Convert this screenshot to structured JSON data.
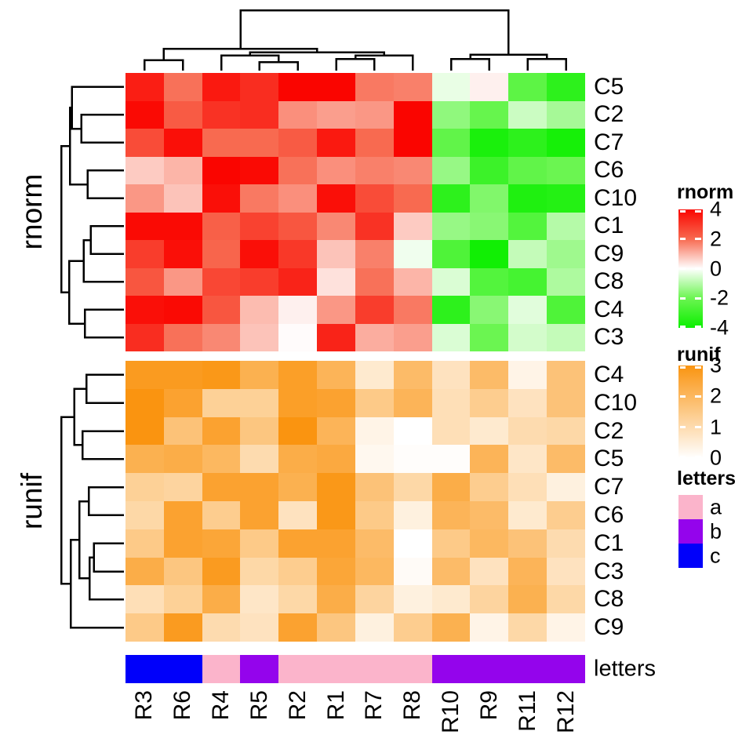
{
  "chart_data": {
    "type": "heatmap",
    "columns": [
      "R3",
      "R6",
      "R4",
      "R5",
      "R2",
      "R1",
      "R7",
      "R8",
      "R10",
      "R9",
      "R11",
      "R12"
    ],
    "column_dendrogram": {
      "h": 1.0,
      "c": [
        {
          "h": 0.36,
          "c": [
            {
              "h": 0.17,
              "c": [
                "R3",
                "R6"
              ]
            },
            {
              "h": 0.3,
              "c": [
                {
                  "h": 0.25,
                  "c": [
                    "R4",
                    {
                      "h": 0.14,
                      "c": [
                        "R5",
                        "R2"
                      ]
                    }
                  ]
                },
                {
                  "h": 0.25,
                  "c": [
                    {
                      "h": 0.19,
                      "c": [
                        "R1",
                        "R7"
                      ]
                    },
                    "R8"
                  ]
                }
              ]
            }
          ]
        },
        {
          "h": 0.26,
          "c": [
            {
              "h": 0.19,
              "c": [
                "R10",
                "R9"
              ]
            },
            {
              "h": 0.19,
              "c": [
                "R11",
                "R12"
              ]
            }
          ]
        }
      ]
    },
    "column_annotation": {
      "name": "letters",
      "values": [
        "c",
        "c",
        "a",
        "b",
        "a",
        "a",
        "a",
        "a",
        "b",
        "b",
        "b",
        "b"
      ],
      "colors": {
        "a": "#FBB4CB",
        "b": "#9404EC",
        "c": "#0000FA"
      }
    },
    "heatmaps": [
      {
        "name": "rnorm",
        "rows": [
          "C5",
          "C2",
          "C7",
          "C6",
          "C10",
          "C1",
          "C9",
          "C8",
          "C4",
          "C3"
        ],
        "scale": {
          "domain": [
            -4,
            -2,
            0,
            2,
            4
          ],
          "colors": [
            "#0CEF00",
            "#6BF551",
            "#FFFFFF",
            "#F86A50",
            "#FA0500"
          ]
        },
        "values": [
          [
            3.5,
            1.9,
            3.6,
            3.2,
            4.0,
            4.0,
            1.8,
            1.7,
            -0.3,
            0.2,
            -2.3,
            -3.3
          ],
          [
            3.9,
            2.3,
            3.1,
            3.2,
            1.5,
            1.3,
            1.4,
            4.0,
            -1.5,
            -2.1,
            -0.7,
            -1.2
          ],
          [
            2.6,
            3.8,
            2.0,
            2.0,
            2.3,
            3.6,
            2.0,
            4.0,
            -2.2,
            -3.7,
            -3.3,
            -3.8
          ],
          [
            0.7,
            1.0,
            4.0,
            3.9,
            1.9,
            1.5,
            1.7,
            1.6,
            -1.4,
            -3.0,
            -2.2,
            -2.0
          ],
          [
            1.4,
            0.8,
            3.8,
            1.8,
            1.5,
            3.8,
            2.6,
            2.0,
            -3.3,
            -1.7,
            -3.6,
            -3.5
          ],
          [
            3.9,
            3.9,
            2.2,
            2.8,
            2.4,
            1.6,
            3.1,
            0.7,
            -1.4,
            -1.6,
            -2.5,
            -1.0
          ],
          [
            2.9,
            3.8,
            2.1,
            3.8,
            3.0,
            0.8,
            1.7,
            -0.2,
            -2.6,
            -3.9,
            -0.8,
            -1.3
          ],
          [
            2.4,
            1.4,
            2.7,
            2.9,
            3.4,
            0.4,
            1.9,
            1.0,
            -0.5,
            -2.5,
            -2.8,
            -1.1
          ],
          [
            3.8,
            3.9,
            2.4,
            0.9,
            0.2,
            1.4,
            2.9,
            1.8,
            -3.3,
            -1.6,
            -0.4,
            -2.6
          ],
          [
            3.2,
            1.9,
            1.6,
            0.8,
            0.05,
            3.4,
            1.1,
            1.3,
            -0.5,
            -2.0,
            -0.6,
            -0.8
          ]
        ],
        "row_dendrogram": {
          "h": 1.0,
          "c": [
            {
              "h": 0.86,
              "c": [
                {
                  "h": 0.83,
                  "c": [
                    "C5",
                    {
                      "h": 0.68,
                      "c": [
                        "C2",
                        "C7"
                      ]
                    }
                  ]
                },
                {
                  "h": 0.58,
                  "c": [
                    "C6",
                    "C10"
                  ]
                }
              ]
            },
            {
              "h": 0.87,
              "c": [
                {
                  "h": 0.64,
                  "c": [
                    {
                      "h": 0.53,
                      "c": [
                        "C1",
                        "C9"
                      ]
                    },
                    "C8"
                  ]
                },
                {
                  "h": 0.62,
                  "c": [
                    "C4",
                    "C3"
                  ]
                }
              ]
            }
          ]
        }
      },
      {
        "name": "runif",
        "rows": [
          "C4",
          "C10",
          "C2",
          "C5",
          "C7",
          "C6",
          "C1",
          "C3",
          "C8",
          "C9"
        ],
        "scale": {
          "domain": [
            0,
            3
          ],
          "colors": [
            "#FFFFFF",
            "#FA9410"
          ]
        },
        "values": [
          [
            2.8,
            2.8,
            2.9,
            2.2,
            2.7,
            2.1,
            0.6,
            1.9,
            0.8,
            1.9,
            0.3,
            1.7
          ],
          [
            3.0,
            2.6,
            1.3,
            1.3,
            2.7,
            2.6,
            1.5,
            2.1,
            0.9,
            1.4,
            0.8,
            1.7
          ],
          [
            3.0,
            1.7,
            2.6,
            1.6,
            3.0,
            2.1,
            0.3,
            0.0,
            0.9,
            0.6,
            1.0,
            1.1
          ],
          [
            2.2,
            2.3,
            2.0,
            1.0,
            2.3,
            2.4,
            0.2,
            0.05,
            0.05,
            2.1,
            0.7,
            1.9
          ],
          [
            1.3,
            1.2,
            2.6,
            2.6,
            2.2,
            2.9,
            1.7,
            1.1,
            2.3,
            1.4,
            0.9,
            0.4
          ],
          [
            1.1,
            2.6,
            1.4,
            2.6,
            0.8,
            2.9,
            1.5,
            0.4,
            2.1,
            1.9,
            0.6,
            1.4
          ],
          [
            1.5,
            2.6,
            2.5,
            1.5,
            2.6,
            2.6,
            1.9,
            0.0,
            1.5,
            2.0,
            1.7,
            1.0
          ],
          [
            2.3,
            1.6,
            2.8,
            1.1,
            1.4,
            2.5,
            2.0,
            0.1,
            1.9,
            0.8,
            2.1,
            0.8
          ],
          [
            0.9,
            1.3,
            2.3,
            0.7,
            1.1,
            2.3,
            1.2,
            0.4,
            0.6,
            1.2,
            2.2,
            1.1
          ],
          [
            1.5,
            2.8,
            1.0,
            0.8,
            2.6,
            1.6,
            0.4,
            1.4,
            2.2,
            0.3,
            1.1,
            0.3
          ]
        ],
        "row_dendrogram": {
          "h": 1.0,
          "c": [
            {
              "h": 0.79,
              "c": [
                {
                  "h": 0.6,
                  "c": [
                    "C4",
                    "C10"
                  ]
                },
                {
                  "h": 0.66,
                  "c": [
                    "C2",
                    "C5"
                  ]
                }
              ]
            },
            {
              "h": 0.85,
              "c": [
                {
                  "h": 0.71,
                  "c": [
                    {
                      "h": 0.56,
                      "c": [
                        "C7",
                        "C6"
                      ]
                    },
                    {
                      "h": 0.55,
                      "c": [
                        {
                          "h": 0.48,
                          "c": [
                            "C1",
                            "C3"
                          ]
                        },
                        "C8"
                      ]
                    }
                  ]
                },
                "C9"
              ]
            }
          ]
        }
      }
    ],
    "legends": [
      {
        "title": "rnorm",
        "type": "gradient",
        "ticks": [
          4,
          2,
          0,
          -2,
          -4
        ]
      },
      {
        "title": "runif",
        "type": "gradient",
        "ticks": [
          3,
          2,
          1,
          0
        ]
      },
      {
        "title": "letters",
        "type": "discrete",
        "items": [
          {
            "label": "a",
            "color": "#FBB4CB"
          },
          {
            "label": "b",
            "color": "#9404EC"
          },
          {
            "label": "c",
            "color": "#0000FA"
          }
        ]
      }
    ]
  }
}
